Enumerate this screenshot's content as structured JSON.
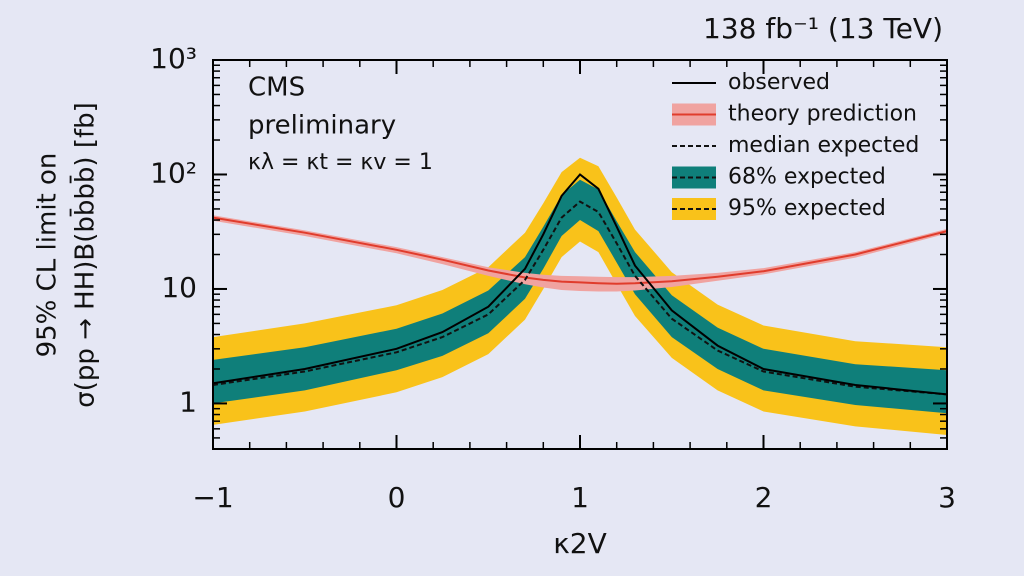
{
  "chart_data": {
    "type": "line",
    "title": "138 fb⁻¹ (13 TeV)",
    "annotations": [
      "CMS",
      "preliminary",
      "κλ = κt = κv = 1"
    ],
    "y_label": [
      "95% CL limit on",
      "σ(pp → HH)B(bb̄bb̄) [fb]"
    ],
    "x_label": "κ2V",
    "log_y": true,
    "xlim": [
      -1,
      3
    ],
    "xticks": [
      {
        "value": -1,
        "label": "−1"
      },
      0,
      1,
      2,
      3
    ],
    "xminorticks": [
      -0.8,
      -0.6,
      -0.4,
      -0.2,
      0.2,
      0.4,
      0.6,
      0.8,
      1.2,
      1.4,
      1.6,
      1.8,
      2.2,
      2.4,
      2.6,
      2.8
    ],
    "ylim": [
      0.4,
      1000
    ],
    "yticks": [
      1,
      10,
      {
        "value": 100,
        "label": "10²"
      },
      {
        "value": 1000,
        "label": "10³"
      }
    ],
    "yminorticks": [
      0.5,
      0.6,
      0.7,
      0.8,
      0.9,
      2,
      3,
      4,
      5,
      6,
      7,
      8,
      9,
      20,
      30,
      40,
      50,
      60,
      70,
      80,
      90,
      200,
      300,
      400,
      500,
      600,
      700,
      800,
      900
    ],
    "x": [
      -1,
      -0.5,
      0,
      0.25,
      0.5,
      0.7,
      0.8,
      0.9,
      1,
      1.1,
      1.2,
      1.3,
      1.5,
      1.75,
      2,
      2.5,
      3
    ],
    "series": [
      {
        "name": "95% expected",
        "kind": "band",
        "color": "#f9c21a",
        "lower": [
          0.65,
          0.85,
          1.25,
          1.7,
          2.7,
          5.4,
          10,
          19,
          26,
          21,
          11,
          5.8,
          2.5,
          1.3,
          0.85,
          0.63,
          0.53
        ],
        "upper": [
          3.8,
          5,
          7.2,
          9.8,
          15.5,
          31,
          56,
          105,
          140,
          118,
          63,
          33,
          14,
          7.3,
          4.8,
          3.5,
          3.1
        ]
      },
      {
        "name": "68% expected",
        "kind": "band",
        "color": "#0f7f7a",
        "lower": [
          1.0,
          1.3,
          1.95,
          2.6,
          4.1,
          8.2,
          15,
          29,
          40,
          32,
          17,
          9,
          3.8,
          2.0,
          1.3,
          0.97,
          0.82
        ],
        "upper": [
          2.4,
          3.1,
          4.5,
          6.1,
          9.7,
          19,
          35,
          66,
          90,
          74,
          39,
          21,
          8.8,
          4.6,
          3.0,
          2.2,
          1.95
        ]
      },
      {
        "name": "theory prediction",
        "kind": "band",
        "color": "#e03c2c",
        "band_color": "#f0a3a0",
        "values": [
          42,
          31,
          22,
          18,
          14.5,
          12.6,
          12,
          11.6,
          11.4,
          11.2,
          11.1,
          11.2,
          11.7,
          12.8,
          14.3,
          20,
          32
        ],
        "lower": [
          39.5,
          29,
          20.5,
          16.5,
          13,
          11,
          10.3,
          9.8,
          9.6,
          9.5,
          9.5,
          9.7,
          10.4,
          11.8,
          13.4,
          18.8,
          30.5
        ],
        "upper": [
          44,
          32.5,
          23.2,
          19,
          15.5,
          13.8,
          13.3,
          13,
          12.9,
          12.8,
          12.7,
          12.7,
          13,
          13.8,
          15.2,
          21,
          33.5
        ]
      },
      {
        "name": "median expected",
        "kind": "line",
        "color": "#111111",
        "dash": true,
        "values": [
          1.45,
          1.9,
          2.8,
          3.8,
          6,
          12,
          22,
          42,
          58,
          47,
          25,
          13,
          5.5,
          2.9,
          1.9,
          1.4,
          1.2
        ]
      },
      {
        "name": "observed",
        "kind": "line",
        "color": "#000000",
        "values": [
          1.5,
          2.0,
          3.0,
          4.2,
          7,
          15,
          30,
          65,
          100,
          75,
          35,
          16,
          6.5,
          3.2,
          2.0,
          1.45,
          1.2
        ]
      }
    ],
    "legend_order": [
      4,
      2,
      3,
      1,
      0
    ]
  }
}
